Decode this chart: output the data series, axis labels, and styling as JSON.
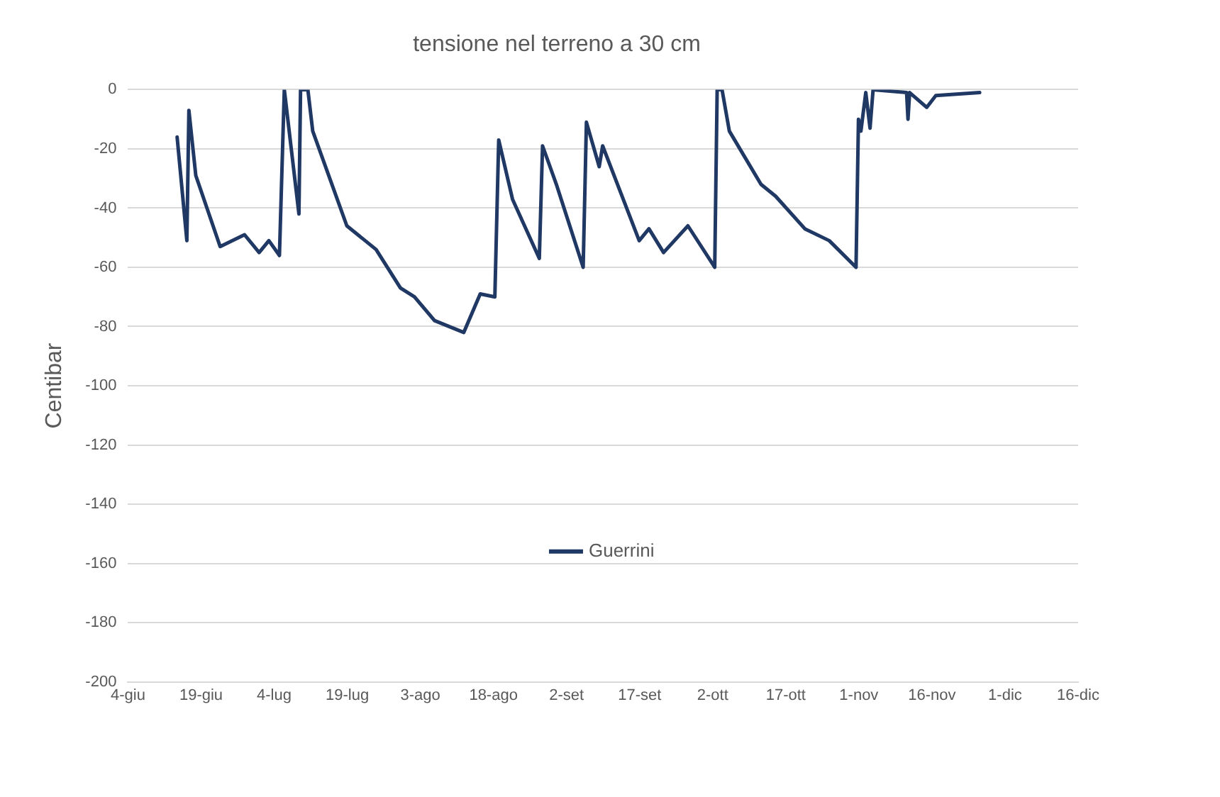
{
  "chart_data": {
    "type": "line",
    "title": "tensione nel terreno a 30 cm",
    "ylabel": "Centibar",
    "x": [
      "--06-14T02:00",
      "--06-16T02:00",
      "--06-16T12:00",
      "--06-17T22:00",
      "--06-22T22:00",
      "--06-27T22:00",
      "--06-30T22:00",
      "--07-02T22:00",
      "--07-05T02:00",
      "--07-06T02:00",
      "--07-09T02:00",
      "--07-09T10:00",
      "--07-10T22:00",
      "--07-11T22:00",
      "--07-18T22:00",
      "--07-24T22:00",
      "--07-29T22:00",
      "--08-01T19:00",
      "--08-05T22:00",
      "--08-11T22:00",
      "--08-15T07:00",
      "--08-18T07:00",
      "--08-19T02:00",
      "--08-21T22:00",
      "--08-27T10:00",
      "--08-28T02:00",
      "--08-30T22:00",
      "--09-05T10:00",
      "--09-06T02:00",
      "--09-08T17:00",
      "--09-09T10:00",
      "--09-16T22:00",
      "--09-18T22:00",
      "--09-21T22:00",
      "--09-26T22:00",
      "--10-02T10:00",
      "--10-02T22:00",
      "--10-03T22:00",
      "--10-05T10:00",
      "--10-11T22:00",
      "--10-14T22:00",
      "--10-20T22:00",
      "--10-25T22:00",
      "--10-31T10:00",
      "--10-31T22:00",
      "--11-01T10:00",
      "--11-02T10:00",
      "--11-03T07:00",
      "--11-03T22:00",
      "--11-10T19:00",
      "--11-11T02:00",
      "--11-11T10:00",
      "--11-14T22:00",
      "--11-16T19:00",
      "--11-25T19:00"
    ],
    "series": [
      {
        "name": "Guerrini",
        "color": "#203864",
        "values": [
          -16,
          -51,
          -7,
          -29,
          -53,
          -49,
          -55,
          -51,
          -56,
          0,
          -42,
          0,
          0,
          -14,
          -46,
          -54,
          -67,
          -70,
          -78,
          -82,
          -69,
          -70,
          -17,
          -37,
          -57,
          -19,
          -32,
          -60,
          -11,
          -26,
          -19,
          -51,
          -47,
          -55,
          -46,
          -60,
          0,
          0,
          -14,
          -32,
          -36,
          -47,
          -51,
          -60,
          -10,
          -14,
          -1,
          -13,
          0,
          -1,
          -10,
          -1,
          -6,
          -2,
          -1
        ]
      }
    ],
    "xlim": [
      "--06-04",
      "--12-16"
    ],
    "xticks": [
      {
        "value": "--06-04",
        "label": "4-giu"
      },
      {
        "value": "--06-19",
        "label": "19-giu"
      },
      {
        "value": "--07-04",
        "label": "4-lug"
      },
      {
        "value": "--07-19",
        "label": "19-lug"
      },
      {
        "value": "--08-03",
        "label": "3-ago"
      },
      {
        "value": "--08-18",
        "label": "18-ago"
      },
      {
        "value": "--09-02",
        "label": "2-set"
      },
      {
        "value": "--09-17",
        "label": "17-set"
      },
      {
        "value": "--10-02",
        "label": "2-ott"
      },
      {
        "value": "--10-17",
        "label": "17-ott"
      },
      {
        "value": "--11-01",
        "label": "1-nov"
      },
      {
        "value": "--11-16",
        "label": "16-nov"
      },
      {
        "value": "--12-01",
        "label": "1-dic"
      },
      {
        "value": "--12-16",
        "label": "16-dic"
      }
    ],
    "ylim": [
      -200,
      0
    ],
    "yticks": [
      -200,
      -180,
      -160,
      -140,
      -120,
      -100,
      -80,
      -60,
      -40,
      -20,
      0
    ],
    "grid": "y",
    "legend": "center",
    "marker": "none",
    "line_style": "solid"
  }
}
